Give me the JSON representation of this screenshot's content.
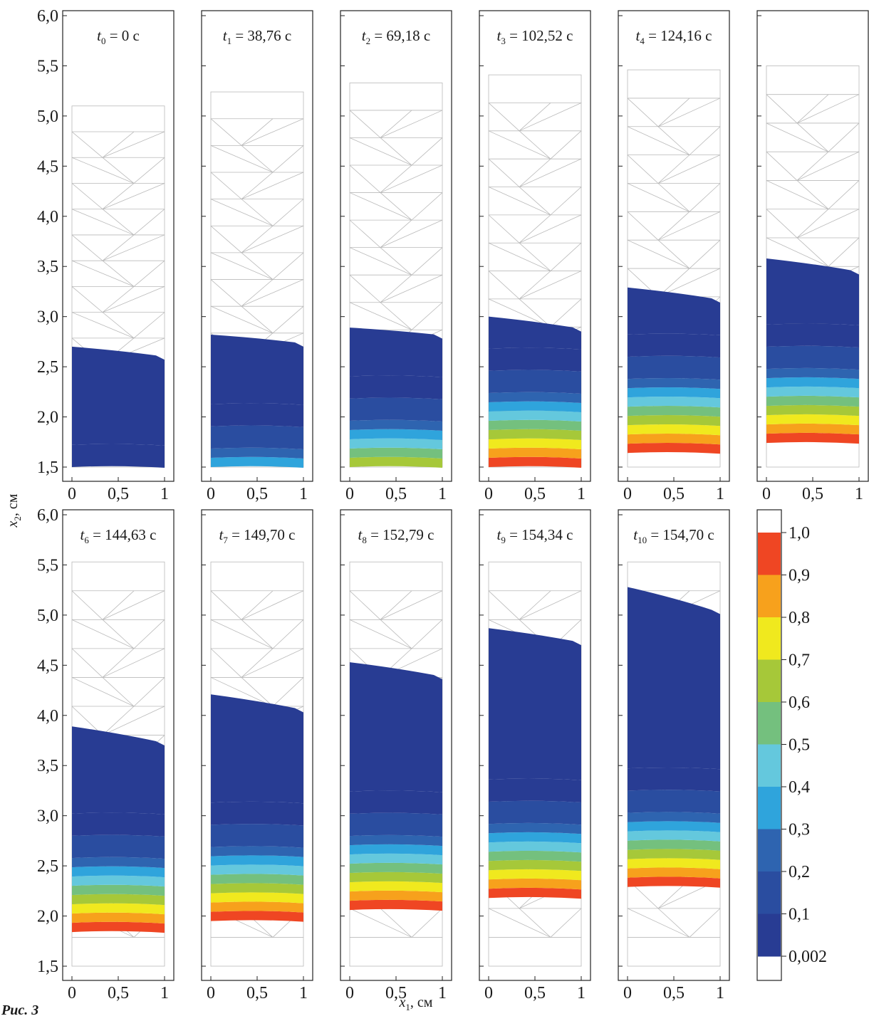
{
  "figure": {
    "caption": "Рис. 3",
    "x_axis_title_main": "x",
    "x_axis_title_sub": "1",
    "x_axis_title_unit": ", см",
    "y_axis_title_main": "x",
    "y_axis_title_sub": "2",
    "y_axis_title_unit": ", см"
  },
  "colorbar": {
    "tick_labels": [
      "1,0",
      "0,9",
      "0,8",
      "0,7",
      "0,6",
      "0,5",
      "0,4",
      "0,3",
      "0,2",
      "0,1",
      "0,002"
    ],
    "colors": [
      "#ef4623",
      "#f7a11c",
      "#f0e91e",
      "#a6c839",
      "#74c07e",
      "#64c8dd",
      "#2fa4dc",
      "#2e64b0",
      "#2a4da0",
      "#283c93",
      "#ffffff"
    ]
  },
  "chart_data": {
    "type": "heatmap",
    "description_of_fields": "small multiples of a deforming mesh; filled region colored by value bands",
    "xlim": [
      0,
      1
    ],
    "ylim": [
      1.5,
      6.0
    ],
    "x_ticks": [
      "0",
      "0,5",
      "1"
    ],
    "y_ticks": [
      "1,5",
      "2,0",
      "2,5",
      "3,0",
      "3,5",
      "4,0",
      "4,5",
      "5,0",
      "5,5",
      "6,0"
    ],
    "panels": [
      {
        "t_sub": "0",
        "t_value": "0 с",
        "mesh_top": 5.1,
        "fill_bottom": 1.5,
        "fill_top_left": 2.7,
        "fill_top_right": 2.57,
        "max_level": 1
      },
      {
        "t_sub": "1",
        "t_value": "38,76 с",
        "mesh_top": 5.24,
        "fill_bottom": 1.5,
        "fill_top_left": 2.82,
        "fill_top_right": 2.7,
        "max_level": 4
      },
      {
        "t_sub": "2",
        "t_value": "69,18 с",
        "mesh_top": 5.33,
        "fill_bottom": 1.5,
        "fill_top_left": 2.89,
        "fill_top_right": 2.78,
        "max_level": 7
      },
      {
        "t_sub": "3",
        "t_value": "102,52 с",
        "mesh_top": 5.41,
        "fill_bottom": 1.5,
        "fill_top_left": 3.0,
        "fill_top_right": 2.85,
        "max_level": 10
      },
      {
        "t_sub": "4",
        "t_value": "124,16 с",
        "mesh_top": 5.46,
        "fill_bottom": 1.64,
        "fill_top_left": 3.29,
        "fill_top_right": 3.14,
        "max_level": 10
      },
      {
        "t_sub": "",
        "t_value": "",
        "mesh_top": 5.5,
        "fill_bottom": 1.74,
        "fill_top_left": 3.58,
        "fill_top_right": 3.42,
        "max_level": 10
      },
      {
        "t_sub": "6",
        "t_value": "144,63 с",
        "mesh_top": 5.53,
        "fill_bottom": 1.84,
        "fill_top_left": 3.89,
        "fill_top_right": 3.7,
        "max_level": 10
      },
      {
        "t_sub": "7",
        "t_value": "149,70 с",
        "mesh_top": 5.53,
        "fill_bottom": 1.95,
        "fill_top_left": 4.21,
        "fill_top_right": 4.03,
        "max_level": 10
      },
      {
        "t_sub": "8",
        "t_value": "152,79 с",
        "mesh_top": 5.53,
        "fill_bottom": 2.06,
        "fill_top_left": 4.53,
        "fill_top_right": 4.36,
        "max_level": 10
      },
      {
        "t_sub": "9",
        "t_value": "154,34 с",
        "mesh_top": 5.53,
        "fill_bottom": 2.18,
        "fill_top_left": 4.87,
        "fill_top_right": 4.7,
        "max_level": 10
      },
      {
        "t_sub": "10",
        "t_value": "154,70 с",
        "mesh_top": 5.53,
        "fill_bottom": 2.29,
        "fill_top_left": 5.28,
        "fill_top_right": 5.01,
        "max_level": 10
      }
    ]
  }
}
